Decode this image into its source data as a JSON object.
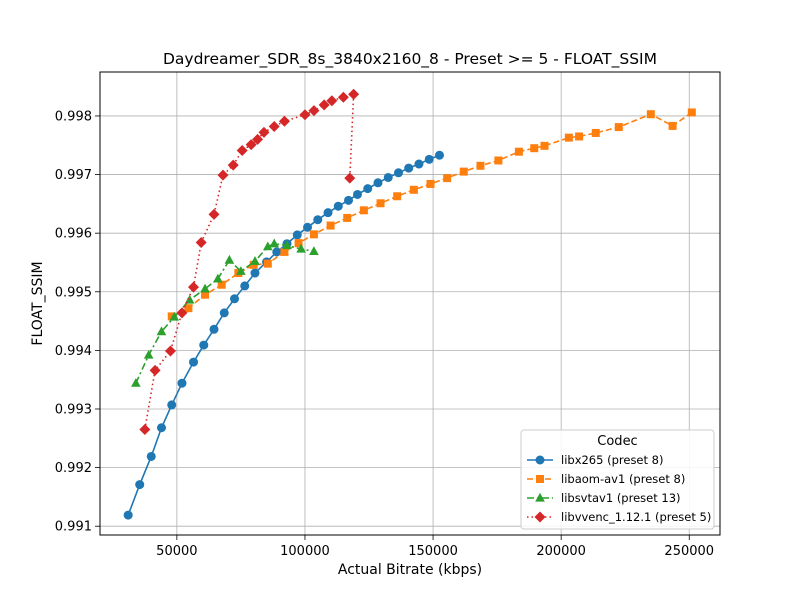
{
  "chart_data": {
    "type": "line",
    "title": "Daydreamer_SDR_8s_3840x2160_8 - Preset >= 5 - FLOAT_SSIM",
    "xlabel": "Actual Bitrate (kbps)",
    "ylabel": "FLOAT_SSIM",
    "xlim": [
      20000,
      262000
    ],
    "ylim": [
      0.99085,
      0.99875
    ],
    "xticks": [
      50000,
      100000,
      150000,
      200000,
      250000
    ],
    "yticks": [
      0.991,
      0.992,
      0.993,
      0.994,
      0.995,
      0.996,
      0.997,
      0.998
    ],
    "xtick_labels": [
      "50000",
      "100000",
      "150000",
      "200000",
      "250000"
    ],
    "ytick_labels": [
      "0.991",
      "0.992",
      "0.993",
      "0.994",
      "0.995",
      "0.996",
      "0.997",
      "0.998"
    ],
    "grid": true,
    "legend": {
      "title": "Codec",
      "position": "bottom-right"
    },
    "series": [
      {
        "name": "libx265 (preset 8)",
        "color": "#1f77b4",
        "marker": "circle",
        "linestyle": "solid",
        "points": [
          [
            31000,
            0.99119
          ],
          [
            35500,
            0.99171
          ],
          [
            40000,
            0.99219
          ],
          [
            44000,
            0.99268
          ],
          [
            48000,
            0.99307
          ],
          [
            52000,
            0.99344
          ],
          [
            56500,
            0.9938
          ],
          [
            60500,
            0.99409
          ],
          [
            64500,
            0.99436
          ],
          [
            68500,
            0.99464
          ],
          [
            72500,
            0.99488
          ],
          [
            76500,
            0.9951
          ],
          [
            80500,
            0.99532
          ],
          [
            85000,
            0.99551
          ],
          [
            89000,
            0.99568
          ],
          [
            93000,
            0.99582
          ],
          [
            97000,
            0.99597
          ],
          [
            101000,
            0.9961
          ],
          [
            105000,
            0.99623
          ],
          [
            109000,
            0.99635
          ],
          [
            113000,
            0.99646
          ],
          [
            117000,
            0.99656
          ],
          [
            120500,
            0.99666
          ],
          [
            124500,
            0.99676
          ],
          [
            128500,
            0.99686
          ],
          [
            132500,
            0.99695
          ],
          [
            136500,
            0.99703
          ],
          [
            140500,
            0.99711
          ],
          [
            144500,
            0.99718
          ],
          [
            148500,
            0.99726
          ],
          [
            152500,
            0.99733
          ]
        ]
      },
      {
        "name": "libaom-av1 (preset 8)",
        "color": "#ff7f0e",
        "marker": "square",
        "linestyle": "dashed",
        "points": [
          [
            48000,
            0.99458
          ],
          [
            54500,
            0.99472
          ],
          [
            61000,
            0.99495
          ],
          [
            67500,
            0.99512
          ],
          [
            74000,
            0.99532
          ],
          [
            80000,
            0.99546
          ],
          [
            85500,
            0.99548
          ],
          [
            92000,
            0.99568
          ],
          [
            97500,
            0.99583
          ],
          [
            103500,
            0.99598
          ],
          [
            110000,
            0.99613
          ],
          [
            116500,
            0.99626
          ],
          [
            123000,
            0.99639
          ],
          [
            129500,
            0.99651
          ],
          [
            136000,
            0.99663
          ],
          [
            142500,
            0.99674
          ],
          [
            149000,
            0.99684
          ],
          [
            155500,
            0.99694
          ],
          [
            162000,
            0.99705
          ],
          [
            168500,
            0.99715
          ],
          [
            175500,
            0.99724
          ],
          [
            183500,
            0.99739
          ],
          [
            189500,
            0.99745
          ],
          [
            193500,
            0.99749
          ],
          [
            203000,
            0.99763
          ],
          [
            207000,
            0.99765
          ],
          [
            213500,
            0.99771
          ],
          [
            222500,
            0.99781
          ],
          [
            235000,
            0.99803
          ],
          [
            243500,
            0.99783
          ],
          [
            251000,
            0.99806
          ]
        ]
      },
      {
        "name": "libsvtav1 (preset 13)",
        "color": "#2ca02c",
        "marker": "triangle",
        "linestyle": "dashdot",
        "points": [
          [
            34000,
            0.99344
          ],
          [
            39000,
            0.99392
          ],
          [
            44000,
            0.99432
          ],
          [
            49000,
            0.99457
          ],
          [
            55000,
            0.99486
          ],
          [
            61000,
            0.99505
          ],
          [
            66000,
            0.99522
          ],
          [
            70500,
            0.99554
          ],
          [
            75000,
            0.99535
          ],
          [
            80500,
            0.99552
          ],
          [
            85500,
            0.99577
          ],
          [
            88000,
            0.99582
          ],
          [
            93000,
            0.99579
          ],
          [
            98500,
            0.99573
          ],
          [
            103500,
            0.99569
          ]
        ]
      },
      {
        "name": "libvvenc_1.12.1 (preset 5)",
        "color": "#d62728",
        "marker": "diamond",
        "linestyle": "dotted",
        "points": [
          [
            37500,
            0.99265
          ],
          [
            41500,
            0.99366
          ],
          [
            47500,
            0.99399
          ],
          [
            52000,
            0.99464
          ],
          [
            56500,
            0.99508
          ],
          [
            59500,
            0.99584
          ],
          [
            64500,
            0.99632
          ],
          [
            68000,
            0.99699
          ],
          [
            72000,
            0.99716
          ],
          [
            75500,
            0.99741
          ],
          [
            79000,
            0.99751
          ],
          [
            81500,
            0.9976
          ],
          [
            84000,
            0.99772
          ],
          [
            88000,
            0.99782
          ],
          [
            92000,
            0.99791
          ],
          [
            100000,
            0.99802
          ],
          [
            103500,
            0.99809
          ],
          [
            107500,
            0.99819
          ],
          [
            110500,
            0.99826
          ],
          [
            115000,
            0.99832
          ],
          [
            119000,
            0.99837
          ],
          [
            117500,
            0.99694
          ]
        ]
      }
    ]
  }
}
